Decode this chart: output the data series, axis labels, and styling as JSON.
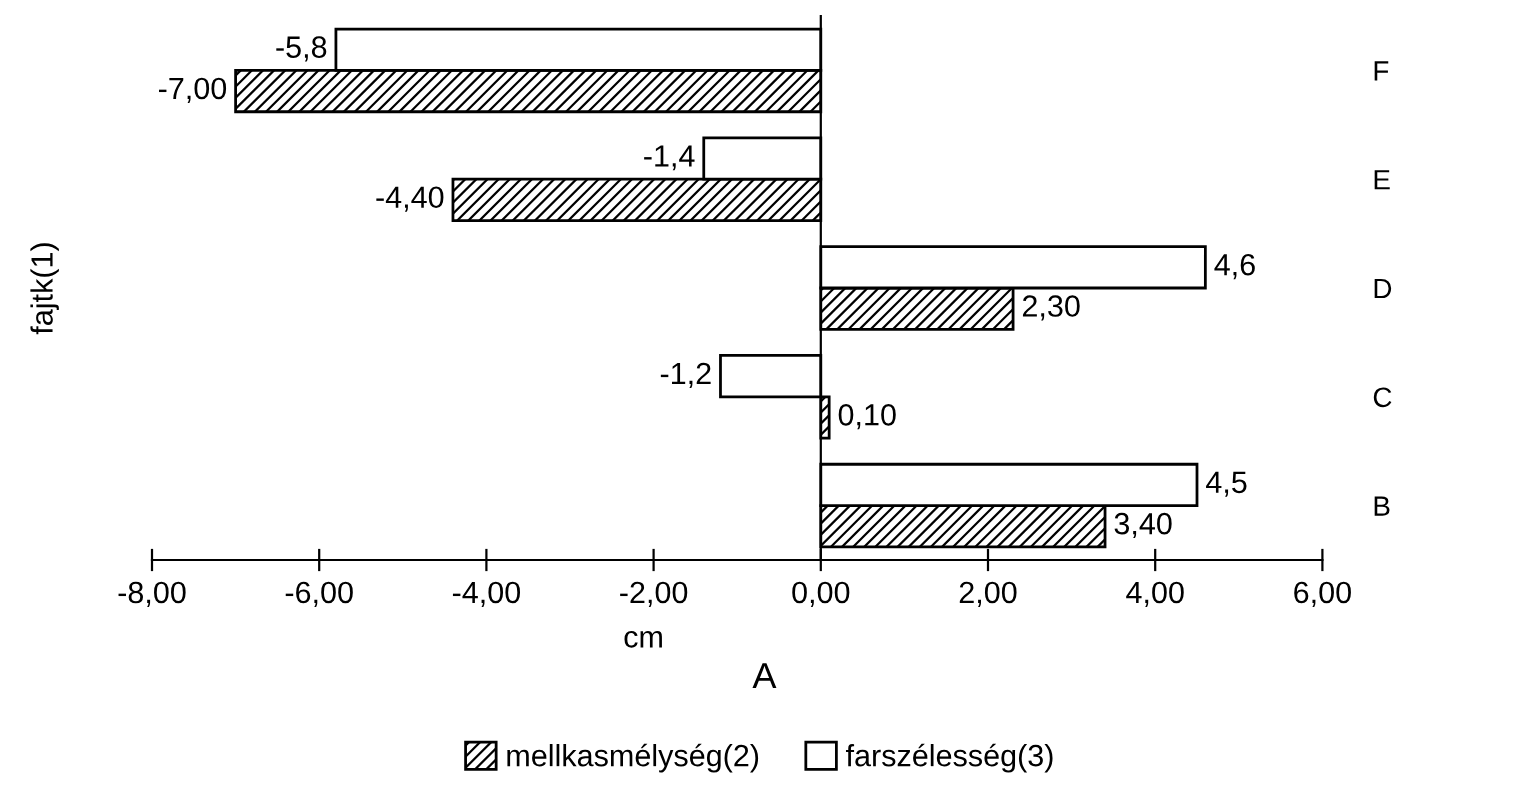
{
  "chart_data": {
    "type": "bar",
    "orientation": "horizontal",
    "categories": [
      "F",
      "E",
      "D",
      "C",
      "B"
    ],
    "series": [
      {
        "name": "mellkasmélység(2)",
        "color": "#000000",
        "values": [
          -7.0,
          -4.4,
          2.3,
          0.1,
          3.4
        ],
        "value_labels": [
          "-7,00",
          "-4,40",
          "2,30",
          "0,10",
          "3,40"
        ]
      },
      {
        "name": "farszélesség(3)",
        "color": "#ffffff",
        "values": [
          -5.8,
          -1.4,
          4.6,
          -1.2,
          4.5
        ],
        "value_labels": [
          "-5,8",
          "-1,4",
          "4,6",
          "-1,2",
          "4,5"
        ]
      }
    ],
    "xlim": [
      -8,
      6
    ],
    "xticks": [
      {
        "value": -8,
        "label": "-8,00"
      },
      {
        "value": -6,
        "label": "-6,00"
      },
      {
        "value": -4,
        "label": "-4,00"
      },
      {
        "value": -2,
        "label": "-2,00"
      },
      {
        "value": 0,
        "label": "0,00"
      },
      {
        "value": 2,
        "label": "2,00"
      },
      {
        "value": 4,
        "label": "4,00"
      },
      {
        "value": 6,
        "label": "6,00"
      }
    ],
    "xlabel": "cm",
    "ylabel": "fajtk(1)",
    "annotations": [
      "A"
    ],
    "legend": "bottom"
  }
}
